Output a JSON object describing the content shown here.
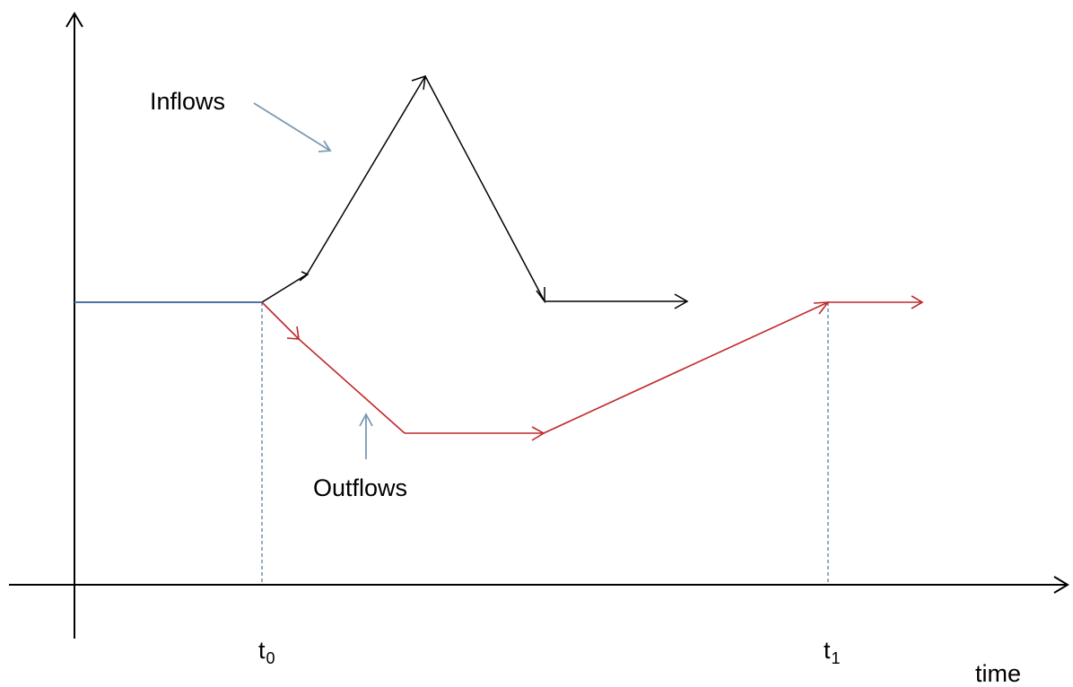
{
  "labels": {
    "inflows": "Inflows",
    "outflows": "Outflows",
    "t0_main": "t",
    "t0_sub": "0",
    "t1_main": "t",
    "t1_sub": "1",
    "x_axis": "time"
  },
  "colors": {
    "axis": "#000000",
    "baseline": "#4f73a8",
    "inflows": "#000000",
    "outflows": "#c0282a",
    "pointer_arrow": "#7a9ab4",
    "guide_line": "#5a7fa4"
  }
}
